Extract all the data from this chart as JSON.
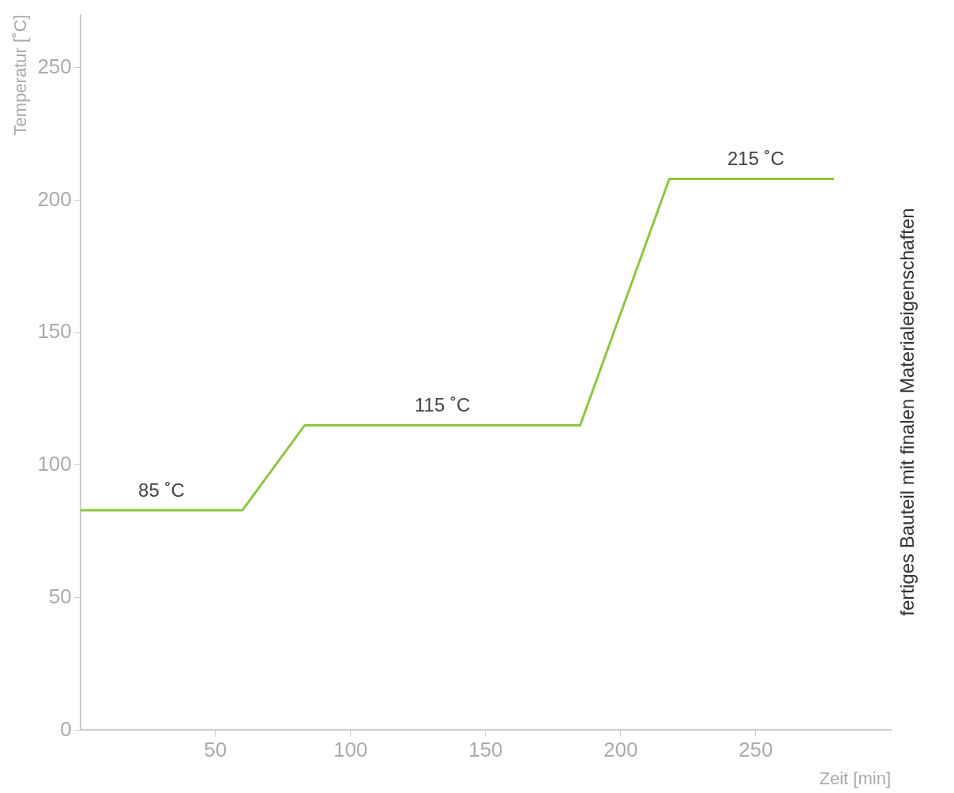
{
  "chart_data": {
    "type": "line",
    "xlabel": "Zeit [min]",
    "ylabel": "Temperatur [˚C]",
    "x": [
      0,
      60,
      83,
      185,
      218,
      279
    ],
    "series": [
      {
        "color": "#8dc63f",
        "values": [
          83,
          83,
          115,
          115,
          208,
          208
        ]
      }
    ],
    "xlim": [
      0,
      300
    ],
    "ylim": [
      0,
      270
    ],
    "xticks": [
      50,
      100,
      150,
      200,
      250
    ],
    "yticks": [
      0,
      50,
      100,
      150,
      200,
      250
    ],
    "grid": false,
    "legend": false,
    "marker": "none",
    "line_style": "solid",
    "annotations": [
      {
        "text": "85 ˚C",
        "x": 30,
        "y": 83
      },
      {
        "text": "115 ˚C",
        "x": 134,
        "y": 115
      },
      {
        "text": "215 ˚C",
        "x": 250,
        "y": 208
      },
      "fertiges Bauteil mit finalen Materialeigenschaften"
    ]
  }
}
